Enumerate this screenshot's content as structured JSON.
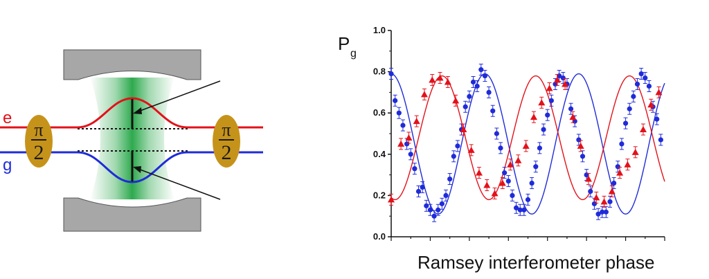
{
  "diagram": {
    "level_e": "e",
    "level_g": "g",
    "pulse_left": {
      "symbol": "π",
      "number": "2"
    },
    "pulse_right": {
      "symbol": "π",
      "number": "2"
    },
    "colors": {
      "excited": "#e3111a",
      "ground": "#1f2bd9",
      "mirror": "#a7a7a7",
      "pulse": "#c6931a",
      "field": "#17a03a"
    }
  },
  "chart_data": {
    "type": "scatter",
    "title": "",
    "ylabel": "P",
    "ylabel_sub": "g",
    "xlabel": "Ramsey interferometer phase",
    "ylim": [
      0.0,
      1.0
    ],
    "xlim": [
      0,
      28
    ],
    "yticks": [
      "0.0",
      "0.2",
      "0.4",
      "0.6",
      "0.8",
      "1.0"
    ],
    "grid": false,
    "series": [
      {
        "marker": "circle",
        "color": "#1f2bd9",
        "x": [
          0,
          0.4,
          0.8,
          1.2,
          1.6,
          2,
          2.4,
          2.8,
          3.2,
          3.6,
          4,
          4.4,
          4.8,
          5.2,
          5.6,
          6,
          6.4,
          6.8,
          7.2,
          7.6,
          8,
          8.4,
          8.8,
          9.2,
          9.6,
          10,
          10.4,
          10.8,
          11.2,
          11.6,
          12,
          12.4,
          12.8,
          13.2,
          13.6,
          14,
          14.4,
          14.8,
          15.2,
          15.6,
          16,
          16.4,
          16.8,
          17.2,
          17.6,
          18,
          18.4,
          18.8,
          19.2,
          19.6,
          20,
          20.4,
          20.8,
          21.2,
          21.6,
          22,
          22.4,
          22.8,
          23.2,
          23.6,
          24,
          24.4,
          24.8,
          25.2,
          25.6,
          26,
          26.4,
          26.8,
          27.2,
          27.6
        ],
        "y": [
          0.79,
          0.66,
          0.6,
          0.54,
          0.45,
          0.4,
          0.33,
          0.22,
          0.24,
          0.15,
          0.13,
          0.1,
          0.13,
          0.16,
          0.2,
          0.28,
          0.39,
          0.44,
          0.52,
          0.63,
          0.68,
          0.75,
          0.73,
          0.81,
          0.78,
          0.7,
          0.61,
          0.5,
          0.43,
          0.31,
          0.27,
          0.2,
          0.14,
          0.13,
          0.13,
          0.18,
          0.26,
          0.34,
          0.43,
          0.52,
          0.59,
          0.66,
          0.74,
          0.78,
          0.77,
          0.74,
          0.62,
          0.56,
          0.47,
          0.39,
          0.3,
          0.22,
          0.16,
          0.11,
          0.12,
          0.12,
          0.17,
          0.26,
          0.34,
          0.45,
          0.55,
          0.62,
          0.68,
          0.74,
          0.79,
          0.77,
          0.73,
          0.63,
          0.57,
          0.47
        ]
      },
      {
        "marker": "triangle",
        "color": "#e3111a",
        "x": [
          0,
          1,
          1.8,
          2.6,
          3.4,
          4.2,
          5,
          5.8,
          6.6,
          7.4,
          8.2,
          9,
          9.8,
          10.6,
          11.4,
          12.2,
          13,
          13.8,
          14.6,
          15.4,
          16.2,
          17,
          17.8,
          18.6,
          19.4,
          20.2,
          21,
          21.8,
          22.6,
          23.4,
          24.2,
          25,
          25.8,
          26.6,
          27.4
        ],
        "y": [
          0.18,
          0.45,
          0.48,
          0.56,
          0.69,
          0.76,
          0.77,
          0.75,
          0.66,
          0.52,
          0.42,
          0.31,
          0.25,
          0.21,
          0.26,
          0.35,
          0.37,
          0.44,
          0.58,
          0.65,
          0.72,
          0.76,
          0.74,
          0.58,
          0.44,
          0.28,
          0.19,
          0.17,
          0.22,
          0.31,
          0.35,
          0.41,
          0.52,
          0.64,
          0.7
        ]
      }
    ],
    "fits": [
      {
        "color": "#1f2bd9",
        "amplitude": 0.34,
        "offset": 0.45,
        "period": 9.6,
        "phase": 0
      },
      {
        "color": "#e3111a",
        "amplitude": -0.3,
        "offset": 0.48,
        "period": 9.6,
        "phase": 0.4
      }
    ]
  }
}
